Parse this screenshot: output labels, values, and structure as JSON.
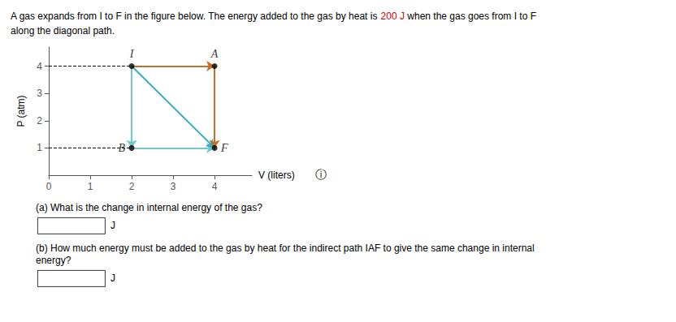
{
  "chart_data": {
    "type": "line",
    "title": [
      [
        {
          "text": "A gas expands from I to F in the figure below. The energy added to the gas by heat is "
        },
        {
          "text": "200 J",
          "color": "#CC0000"
        },
        {
          "text": " when the gas goes from I to F"
        }
      ],
      [
        {
          "text": "along the diagonal path."
        }
      ]
    ],
    "xlabel": "V (liters)",
    "ylabel": "P (atm)",
    "xlim": [
      0,
      4.9
    ],
    "ylim": [
      0,
      4.7
    ],
    "xticks": [
      0,
      1,
      2,
      3,
      4
    ],
    "yticks": [
      1,
      2,
      3,
      4
    ],
    "grid": false,
    "series": [
      {
        "type": "line",
        "marker": "arrow",
        "line_style": "solid",
        "color": "#70C8CC",
        "x": [
          2,
          2,
          4
        ],
        "values": [
          4,
          1,
          1
        ]
      },
      {
        "type": "line",
        "marker": "arrow",
        "line_style": "solid",
        "color": "#3AACBF",
        "x": [
          2,
          4
        ],
        "values": [
          4,
          1
        ]
      },
      {
        "type": "line",
        "marker": "arrow",
        "line_style": "solid",
        "color": "#C4702A",
        "x": [
          2,
          4,
          4
        ],
        "values": [
          4,
          4,
          1
        ]
      },
      {
        "type": "line",
        "line_style": "dashed",
        "color": "#000000",
        "x": [
          0,
          2
        ],
        "values": [
          4,
          4
        ]
      },
      {
        "type": "line",
        "line_style": "dashed",
        "color": "#000000",
        "x": [
          0,
          2
        ],
        "values": [
          1,
          1
        ]
      },
      {
        "type": "scatter",
        "marker": "circle",
        "color": "#000000",
        "x": [
          2,
          4,
          4,
          2
        ],
        "values": [
          4,
          4,
          1,
          1
        ]
      }
    ],
    "annotations": [
      {
        "text": "I",
        "x": 2,
        "y": 4
      },
      {
        "text": "A",
        "x": 4,
        "y": 4
      },
      {
        "text": "F",
        "x": 4,
        "y": 1
      },
      {
        "text": "B",
        "x": 2,
        "y": 1
      },
      {
        "text": "ⓘ"
      },
      {
        "text": "(a) What is the change in internal energy of the gas?",
        "unit": "J"
      },
      {
        "text": "(b) How much energy must be added to the gas by heat for the indirect path IAF to give the same change in internal\nenergy?",
        "unit": "J"
      }
    ]
  }
}
